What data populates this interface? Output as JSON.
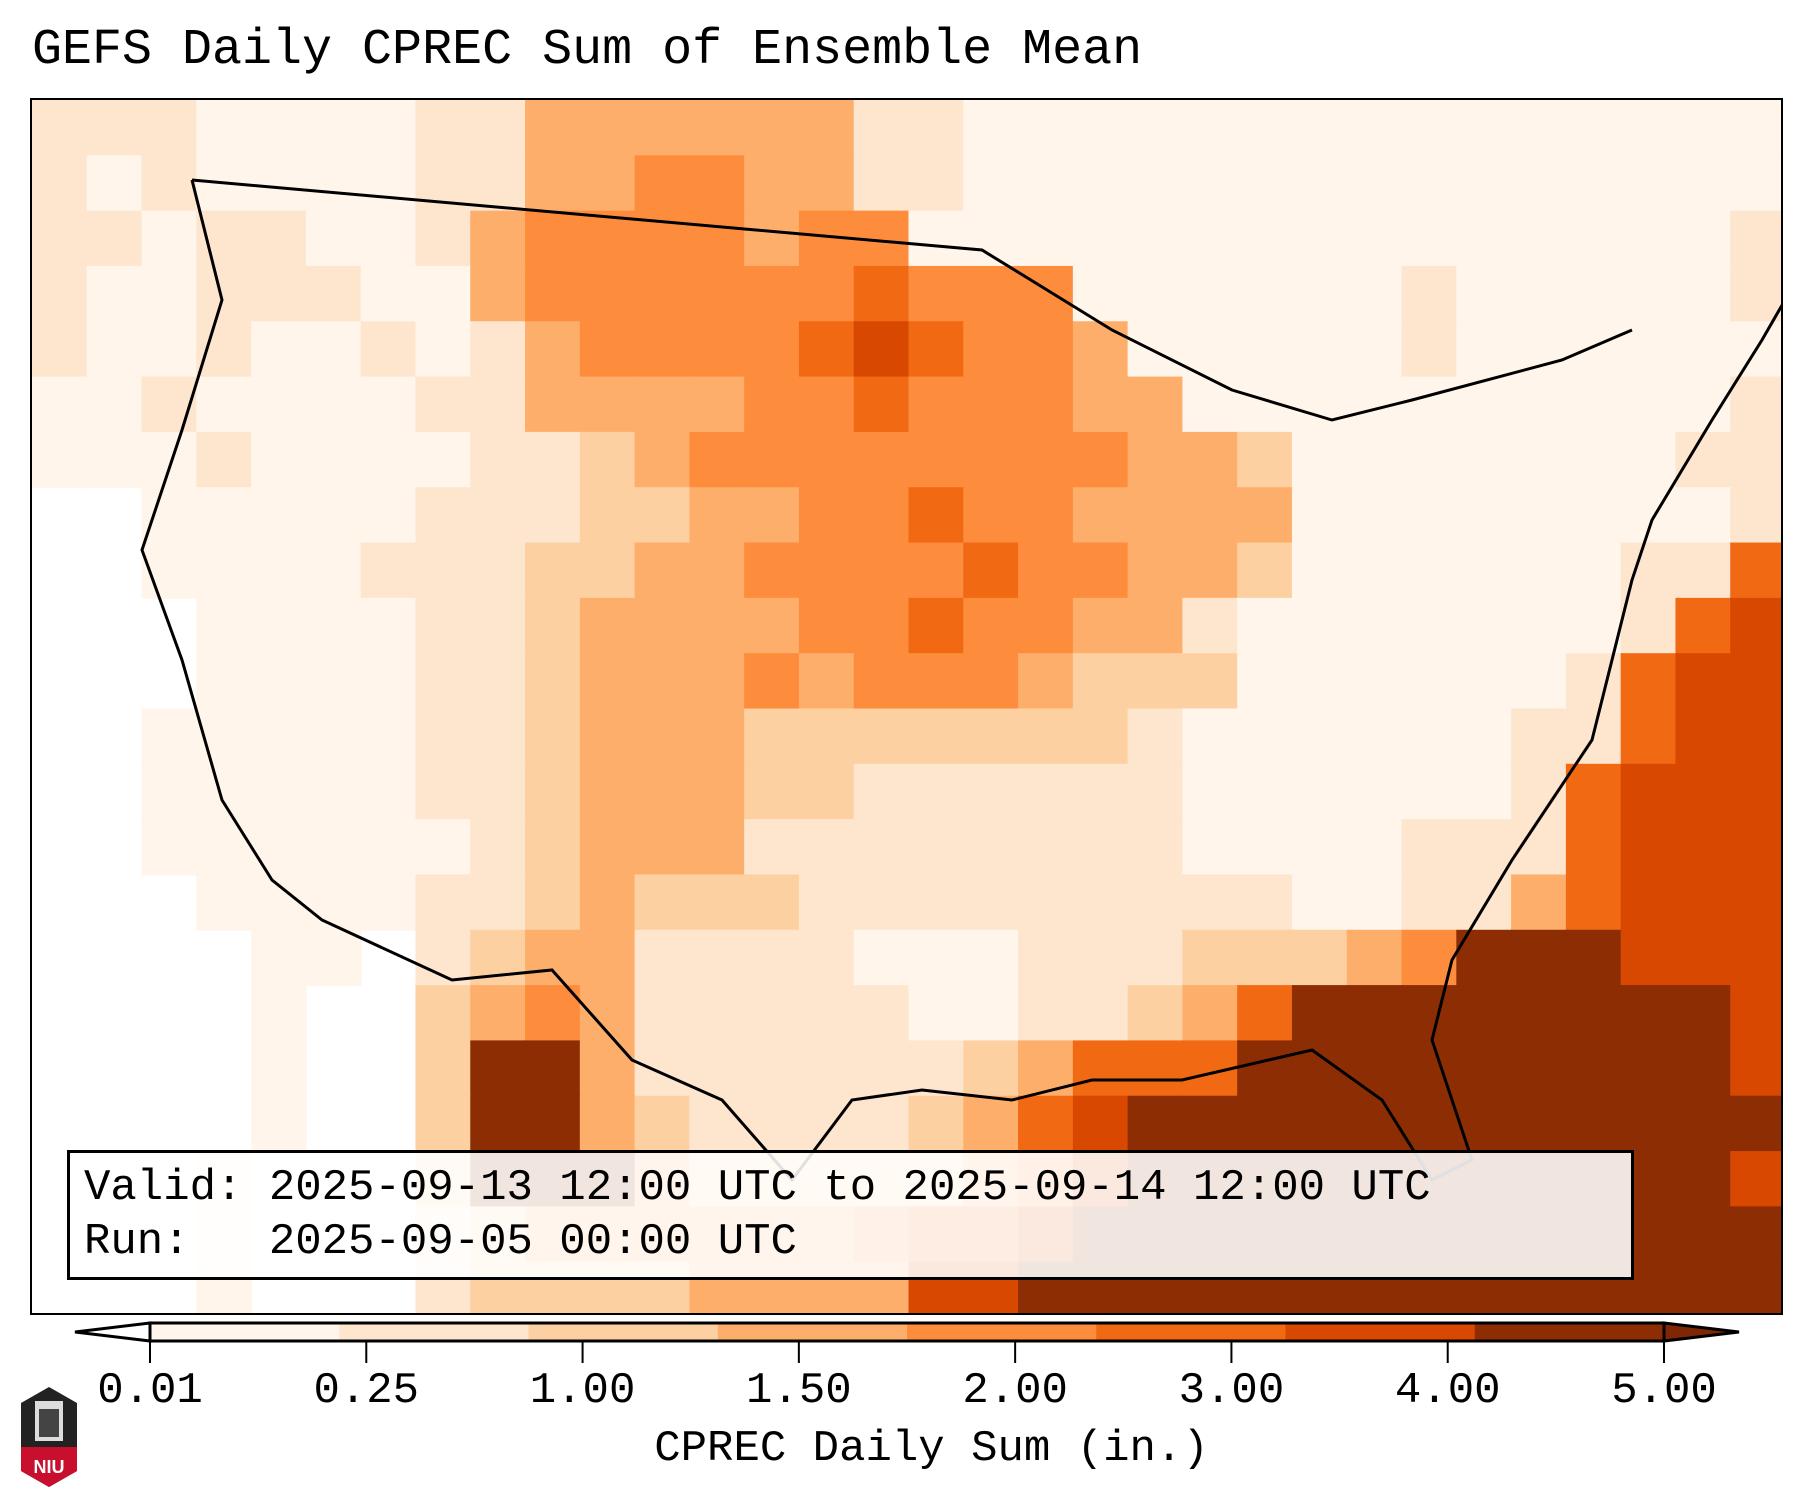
{
  "title": "GEFS Daily CPREC Sum of Ensemble Mean",
  "info": {
    "valid_label": "Valid:",
    "valid_text": "2025-09-13 12:00 UTC to 2025-09-14 12:00 UTC",
    "run_label": "Run:",
    "run_text": "2025-09-05 00:00 UTC"
  },
  "colorbar": {
    "label": "CPREC Daily Sum (in.)",
    "ticks": [
      "0.01",
      "0.25",
      "1.00",
      "1.50",
      "2.00",
      "3.00",
      "4.00",
      "5.00"
    ],
    "colors": [
      "#fff5eb",
      "#fee6ce",
      "#fdd0a2",
      "#fdae6b",
      "#fd8d3c",
      "#f16913",
      "#d94801",
      "#8c2d04"
    ],
    "extend": "both"
  },
  "logo": {
    "text": "NIU"
  }
}
